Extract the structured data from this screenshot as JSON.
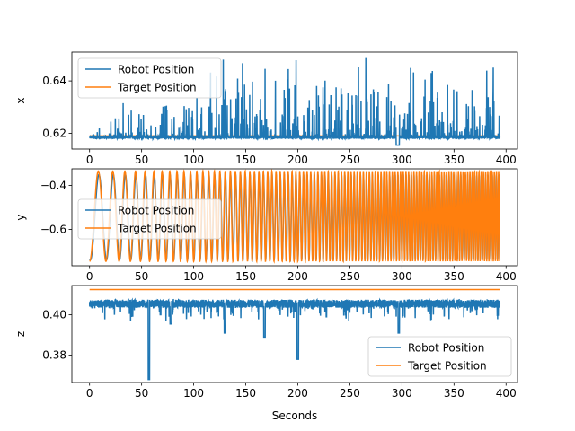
{
  "chart_data": {
    "type": "line",
    "xlabel": "Seconds",
    "x_range": [
      0,
      394
    ],
    "series_names": [
      "Robot Position",
      "Target Position"
    ],
    "colors": {
      "robot": "#1f77b4",
      "target": "#ff7f0e"
    },
    "legend_labels": {
      "robot": "Robot Position",
      "target": "Target Position"
    },
    "x_ticks": [
      "0",
      "50",
      "100",
      "150",
      "200",
      "250",
      "300",
      "350",
      "400"
    ],
    "subplots": [
      {
        "ylabel": "x",
        "xlim": [
          -17,
          411
        ],
        "ylim": [
          0.614,
          0.651
        ],
        "yticks": [
          0.62,
          0.64
        ],
        "ytick_labels": [
          "0.62",
          "0.64"
        ],
        "legend_loc": "upper-left",
        "robot": {
          "baseline": 0.6185,
          "noise_max": 0.0325,
          "note_pattern": "sparse spikes up to ~0.65"
        },
        "target": {
          "value": 0.619
        }
      },
      {
        "ylabel": "y",
        "xlim": [
          -17,
          411
        ],
        "ylim": [
          -0.765,
          -0.325
        ],
        "yticks": [
          -0.4,
          -0.6
        ],
        "ytick_labels": [
          "−0.4",
          "−0.6"
        ],
        "legend_loc": "center-left",
        "robot": {
          "min": -0.745,
          "max": -0.345
        },
        "target": {
          "min": -0.745,
          "max": -0.335,
          "chirp_start_hz": 0.055,
          "chirp_rate": 0.0011
        }
      },
      {
        "ylabel": "z",
        "xlim": [
          -17,
          411
        ],
        "ylim": [
          0.3665,
          0.4145
        ],
        "yticks": [
          0.38,
          0.4
        ],
        "ytick_labels": [
          "0.38",
          "0.40"
        ],
        "legend_loc": "lower-right",
        "robot": {
          "baseline": 0.4055,
          "dips": [
            [
              57,
              0.368
            ],
            [
              200,
              0.378
            ],
            [
              168,
              0.389
            ],
            [
              130,
              0.391
            ],
            [
              297,
              0.391
            ],
            [
              78,
              0.3955
            ]
          ]
        },
        "target": {
          "value": 0.4125
        }
      }
    ]
  }
}
